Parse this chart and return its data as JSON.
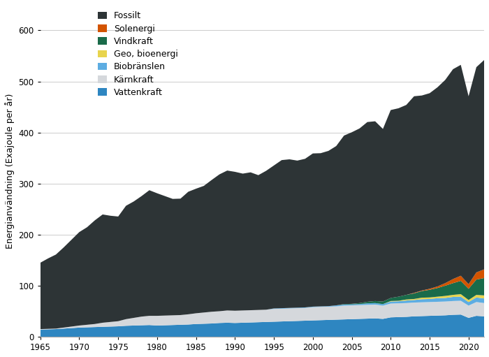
{
  "years": [
    1965,
    1966,
    1967,
    1968,
    1969,
    1970,
    1971,
    1972,
    1973,
    1974,
    1975,
    1976,
    1977,
    1978,
    1979,
    1980,
    1981,
    1982,
    1983,
    1984,
    1985,
    1986,
    1987,
    1988,
    1989,
    1990,
    1991,
    1992,
    1993,
    1994,
    1995,
    1996,
    1997,
    1998,
    1999,
    2000,
    2001,
    2002,
    2003,
    2004,
    2005,
    2006,
    2007,
    2008,
    2009,
    2010,
    2011,
    2012,
    2013,
    2014,
    2015,
    2016,
    2017,
    2018,
    2019,
    2020,
    2021,
    2022
  ],
  "vattenkraft": [
    14,
    14.5,
    15,
    16,
    17,
    18,
    18.5,
    19,
    19.5,
    20,
    20.5,
    21.5,
    22,
    22.5,
    23,
    22,
    22.5,
    23,
    23.5,
    24,
    25,
    25.5,
    26,
    27,
    27.5,
    27,
    27.5,
    28,
    28.5,
    29,
    29.5,
    30,
    30.5,
    31,
    31.5,
    32,
    32.5,
    33,
    33.5,
    34,
    34.5,
    35,
    35.5,
    36,
    35,
    38,
    38.5,
    39,
    40,
    40.5,
    41,
    41.5,
    42,
    43,
    43.5,
    37,
    41,
    40
  ],
  "karnkraft": [
    1,
    1,
    1,
    2,
    3,
    4,
    5,
    6,
    8,
    9,
    10,
    13,
    15,
    17,
    18,
    19,
    19,
    19,
    19,
    20,
    21,
    22,
    23,
    23,
    24,
    24,
    24,
    24,
    24,
    24,
    25,
    25,
    25,
    25,
    25,
    26,
    26,
    26,
    26,
    27,
    27,
    27,
    27,
    27,
    26,
    27,
    27,
    27,
    27,
    27,
    27,
    27,
    27,
    27,
    27,
    24,
    27,
    26
  ],
  "biobranslen": [
    0,
    0,
    0,
    0,
    0,
    0,
    0,
    0,
    0,
    0,
    0,
    0,
    0,
    0,
    0,
    0,
    0,
    0,
    0,
    0,
    0,
    0,
    0,
    0,
    0,
    0,
    0,
    0,
    0,
    0,
    1,
    1,
    1,
    1,
    1,
    1,
    1,
    1,
    2,
    2,
    2,
    2,
    3,
    3,
    3,
    4,
    4,
    5,
    5,
    6,
    6,
    7,
    7,
    8,
    8,
    7,
    9,
    9
  ],
  "geo_bioenergi": [
    0,
    0,
    0,
    0,
    0,
    0,
    0,
    0,
    0,
    0,
    0,
    0,
    0,
    0,
    0,
    0,
    0,
    0,
    0,
    0,
    0,
    0,
    0,
    0,
    0,
    0,
    0,
    0,
    0,
    0,
    0,
    0,
    0,
    0,
    0,
    0,
    0,
    0,
    0,
    0,
    0,
    0,
    0,
    0,
    0,
    1,
    1,
    2,
    2,
    3,
    3,
    3,
    4,
    4,
    5,
    4,
    5,
    6
  ],
  "vindkraft": [
    0,
    0,
    0,
    0,
    0,
    0,
    0,
    0,
    0,
    0,
    0,
    0,
    0,
    0,
    0,
    0,
    0,
    0,
    0,
    0,
    0,
    0,
    0,
    0,
    0,
    0,
    0,
    0,
    0,
    0,
    0,
    0,
    0,
    0,
    0,
    0,
    0,
    0,
    0,
    1,
    1,
    2,
    3,
    4,
    5,
    6,
    8,
    9,
    11,
    13,
    15,
    17,
    20,
    23,
    26,
    22,
    30,
    34
  ],
  "solenergi": [
    0,
    0,
    0,
    0,
    0,
    0,
    0,
    0,
    0,
    0,
    0,
    0,
    0,
    0,
    0,
    0,
    0,
    0,
    0,
    0,
    0,
    0,
    0,
    0,
    0,
    0,
    0,
    0,
    0,
    0,
    0,
    0,
    0,
    0,
    0,
    0,
    0,
    0,
    0,
    0,
    0,
    0,
    0,
    0,
    0,
    0,
    0,
    0,
    1,
    1,
    2,
    3,
    5,
    8,
    10,
    9,
    14,
    17
  ],
  "fossilt": [
    130,
    138,
    145,
    157,
    170,
    183,
    191,
    203,
    212,
    208,
    205,
    222,
    228,
    236,
    246,
    240,
    234,
    228,
    228,
    240,
    244,
    248,
    258,
    268,
    274,
    272,
    268,
    270,
    264,
    272,
    280,
    290,
    291,
    288,
    291,
    300,
    300,
    304,
    312,
    330,
    336,
    342,
    352,
    352,
    338,
    368,
    369,
    372,
    385,
    382,
    383,
    390,
    398,
    411,
    413,
    368,
    402,
    410
  ],
  "colors": {
    "fossilt": "#2d3436",
    "solenergi": "#d35400",
    "vindkraft": "#1a6b4a",
    "geo_bioenergi": "#e8d44d",
    "biobranslen": "#5dade2",
    "karnkraft": "#d5d8dc",
    "vattenkraft": "#2e86c1"
  },
  "labels": {
    "fossilt": "Fossilt",
    "solenergi": "Solenergi",
    "vindkraft": "Vindkraft",
    "geo_bioenergi": "Geo, bioenergi",
    "biobranslen": "Biobränslen",
    "karnkraft": "Kärnkraft",
    "vattenkraft": "Vattenkraft"
  },
  "ylabel": "Energianvändning (Exajoule per år)",
  "ylim": [
    0,
    650
  ],
  "yticks": [
    0,
    100,
    200,
    300,
    400,
    500,
    600
  ],
  "xlim": [
    1965,
    2022
  ],
  "xticks": [
    1965,
    1970,
    1975,
    1980,
    1985,
    1990,
    1995,
    2000,
    2005,
    2010,
    2015,
    2020
  ],
  "bg_color": "#ffffff",
  "grid_color": "#cccccc"
}
